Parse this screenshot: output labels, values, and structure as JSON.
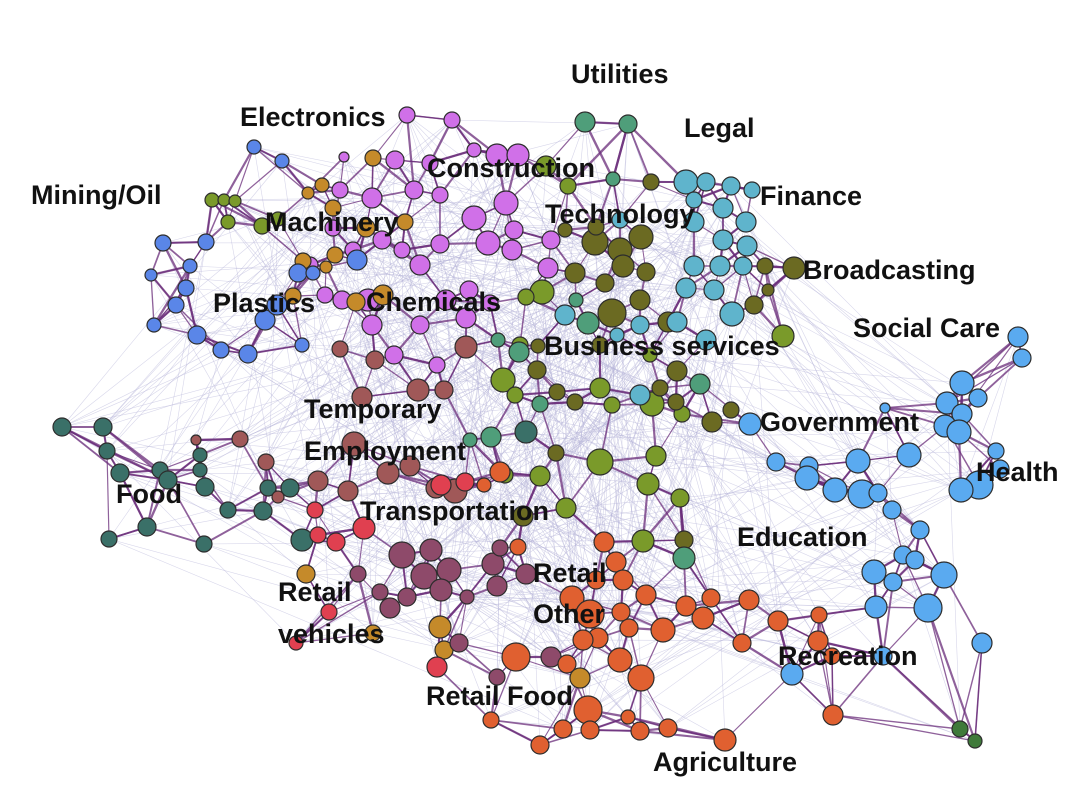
{
  "diagram": {
    "type": "network",
    "description_visible": false,
    "edge_colors": {
      "strong": "#6a2c7a",
      "weak": "#b7b4d8"
    },
    "clusters": [
      {
        "id": "electronics",
        "label": "Electronics",
        "color": "#d070e8"
      },
      {
        "id": "utilities",
        "label": "Utilities",
        "color": "#4f9e7a"
      },
      {
        "id": "legal",
        "label": "Legal",
        "color": "#5fb4cc"
      },
      {
        "id": "construction",
        "label": "Construction",
        "color": "#d070e8"
      },
      {
        "id": "finance",
        "label": "Finance",
        "color": "#5fb4cc"
      },
      {
        "id": "mining-oil",
        "label": "Mining/Oil",
        "color": "#7a9a2a"
      },
      {
        "id": "machinery",
        "label": "Machinery",
        "color": "#c58a2a"
      },
      {
        "id": "technology",
        "label": "Technology",
        "color": "#6b6a22"
      },
      {
        "id": "broadcasting",
        "label": "Broadcasting",
        "color": "#6b6a22"
      },
      {
        "id": "plastics",
        "label": "Plastics",
        "color": "#5a86e8"
      },
      {
        "id": "chemicals",
        "label": "Chemicals",
        "color": "#d070e8"
      },
      {
        "id": "social-care",
        "label": "Social Care",
        "color": "#5aaaf0"
      },
      {
        "id": "business-services",
        "label": "Business services",
        "color": "#7fa030"
      },
      {
        "id": "temporary-employment",
        "label": "Temporary\nEmployment",
        "color": "#a05858"
      },
      {
        "id": "government",
        "label": "Government",
        "color": "#5aaaf0"
      },
      {
        "id": "health",
        "label": "Health",
        "color": "#5aaaf0"
      },
      {
        "id": "food",
        "label": "Food",
        "color": "#3a7068"
      },
      {
        "id": "transportation",
        "label": "Transportation",
        "color": "#8e4a6a"
      },
      {
        "id": "education",
        "label": "Education",
        "color": "#5aaaf0"
      },
      {
        "id": "retail-other",
        "label": "Retail\nOther",
        "color": "#e06030"
      },
      {
        "id": "retail-vehicles",
        "label": "Retail\nvehicles",
        "color": "#e04050"
      },
      {
        "id": "recreation",
        "label": "Recreation",
        "color": "#5aaaf0"
      },
      {
        "id": "retail-food",
        "label": "Retail Food",
        "color": "#e06030"
      },
      {
        "id": "agriculture",
        "label": "Agriculture",
        "color": "#e06030"
      }
    ]
  }
}
